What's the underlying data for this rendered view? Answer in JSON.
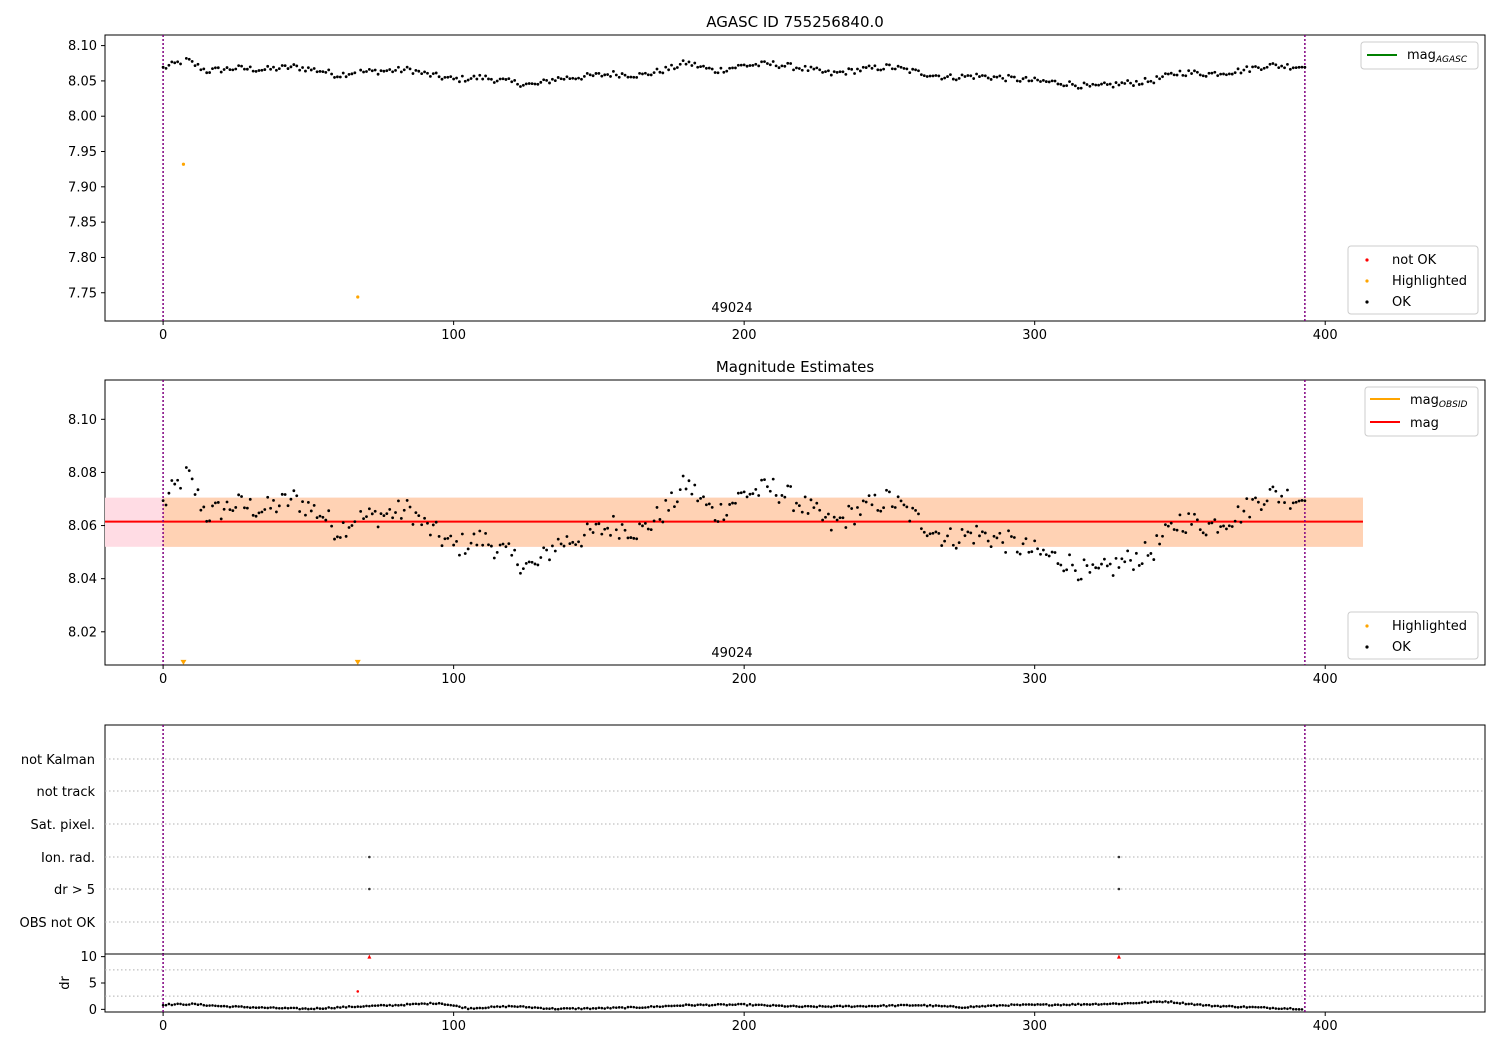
{
  "chart_data": [
    {
      "type": "scatter",
      "title": "AGASC ID 755256840.0",
      "xlim": [
        -20,
        455
      ],
      "ylim": [
        7.71,
        8.115
      ],
      "xticks": [
        "0",
        "100",
        "200",
        "300",
        "400"
      ],
      "yticks": [
        "7.75",
        "7.80",
        "7.85",
        "7.90",
        "7.95",
        "8.00",
        "8.05",
        "8.10"
      ],
      "annotation": "49024",
      "vlines": [
        0,
        393
      ],
      "legend_top": {
        "position": "upper right",
        "entries": [
          {
            "name": "mag",
            "sub": "AGASC",
            "color": "#008000"
          }
        ]
      },
      "legend_bottom": {
        "position": "lower right",
        "entries": [
          {
            "name": "not OK",
            "color": "#ff0000"
          },
          {
            "name": "Highlighted",
            "color": "#ffa500"
          },
          {
            "name": "OK",
            "color": "#000000"
          }
        ]
      },
      "series": [
        {
          "name": "OK",
          "color": "#000000",
          "points": "mag_trend"
        },
        {
          "name": "Highlighted",
          "color": "#ffa500",
          "x": [
            7,
            67
          ],
          "y": [
            7.932,
            7.744
          ]
        }
      ]
    },
    {
      "type": "scatter",
      "title": "Magnitude Estimates",
      "xlim": [
        -20,
        455
      ],
      "ylim": [
        8.0075,
        8.1148
      ],
      "xticks": [
        "0",
        "100",
        "200",
        "300",
        "400"
      ],
      "yticks": [
        "8.02",
        "8.04",
        "8.06",
        "8.08",
        "8.10"
      ],
      "annotation": "49024",
      "vlines": [
        0,
        393
      ],
      "mag_line": {
        "y": 8.0615,
        "x_range": [
          -20,
          413
        ],
        "color": "#ff0000"
      },
      "band_inner": {
        "y": [
          8.052,
          8.0705
        ],
        "x_range": [
          0,
          413
        ],
        "color": "#ffd2b4"
      },
      "band_outer": {
        "y": [
          8.052,
          8.0705
        ],
        "x_range": [
          -20,
          413
        ],
        "color": "#ffdce4"
      },
      "legend_top": {
        "position": "upper right",
        "entries": [
          {
            "name": "mag",
            "sub": "OBSID",
            "color": "#ffa500"
          },
          {
            "name": "mag",
            "sub": "",
            "color": "#ff0000"
          }
        ]
      },
      "legend_bottom": {
        "position": "lower right",
        "entries": [
          {
            "name": "Highlighted",
            "color": "#ffa500"
          },
          {
            "name": "OK",
            "color": "#000000"
          }
        ]
      },
      "series": [
        {
          "name": "OK",
          "color": "#000000",
          "points": "mag_trend"
        },
        {
          "name": "Highlighted",
          "color": "#ffa500",
          "x": [
            7,
            67
          ],
          "y": [
            8.0085,
            8.0085
          ],
          "marker": "triangle-down"
        }
      ],
      "mag_trend": {
        "x": [
          0,
          8,
          15,
          25,
          35,
          45,
          55,
          60,
          65,
          75,
          85,
          90,
          100,
          110,
          120,
          128,
          135,
          145,
          155,
          165,
          175,
          180,
          190,
          200,
          210,
          220,
          230,
          240,
          250,
          260,
          270,
          280,
          290,
          300,
          310,
          320,
          330,
          340,
          350,
          360,
          370,
          380,
          393
        ],
        "y": [
          8.068,
          8.08,
          8.064,
          8.068,
          8.066,
          8.07,
          8.064,
          8.058,
          8.062,
          8.064,
          8.066,
          8.06,
          8.052,
          8.055,
          8.048,
          8.044,
          8.053,
          8.056,
          8.06,
          8.058,
          8.068,
          8.076,
          8.064,
          8.072,
          8.074,
          8.068,
          8.06,
          8.066,
          8.07,
          8.062,
          8.055,
          8.057,
          8.054,
          8.05,
          8.047,
          8.041,
          8.046,
          8.05,
          8.062,
          8.06,
          8.064,
          8.072,
          8.07
        ]
      }
    },
    {
      "type": "scatter",
      "title": "",
      "xlim": [
        -20,
        455
      ],
      "xticks": [
        "0",
        "100",
        "200",
        "300",
        "400"
      ],
      "vlines": [
        0,
        393
      ],
      "flag_rows": [
        "not Kalman",
        "not track",
        "Sat. pixel.",
        "Ion. rad.",
        "dr > 5",
        "OBS not OK"
      ],
      "flag_points": [
        {
          "row": "Ion. rad.",
          "x": [
            71,
            329
          ]
        },
        {
          "row": "dr > 5",
          "x": [
            71,
            329
          ]
        }
      ],
      "dr_panel": {
        "ylabel": "dr",
        "ylim": [
          -0.5,
          10.5
        ],
        "yticks": [
          "0",
          "5",
          "10"
        ],
        "above_10": {
          "color": "#ff0000",
          "x": [
            71,
            329
          ],
          "marker": "triangle-up"
        },
        "other": {
          "color": "#ff0000",
          "x": [
            67
          ],
          "y": [
            3.4
          ]
        },
        "baseline": {
          "x": [
            0,
            10,
            20,
            35,
            50,
            65,
            80,
            95,
            105,
            120,
            135,
            150,
            165,
            180,
            200,
            220,
            240,
            260,
            275,
            290,
            310,
            330,
            345,
            360,
            380,
            392
          ],
          "y": [
            0.9,
            1.0,
            0.6,
            0.3,
            0.1,
            0.5,
            0.8,
            1.2,
            0.2,
            0.6,
            0.1,
            0.2,
            0.4,
            0.8,
            0.9,
            0.5,
            0.6,
            0.8,
            0.4,
            0.8,
            0.9,
            1.1,
            1.5,
            0.7,
            0.3,
            0.1
          ]
        }
      }
    }
  ]
}
